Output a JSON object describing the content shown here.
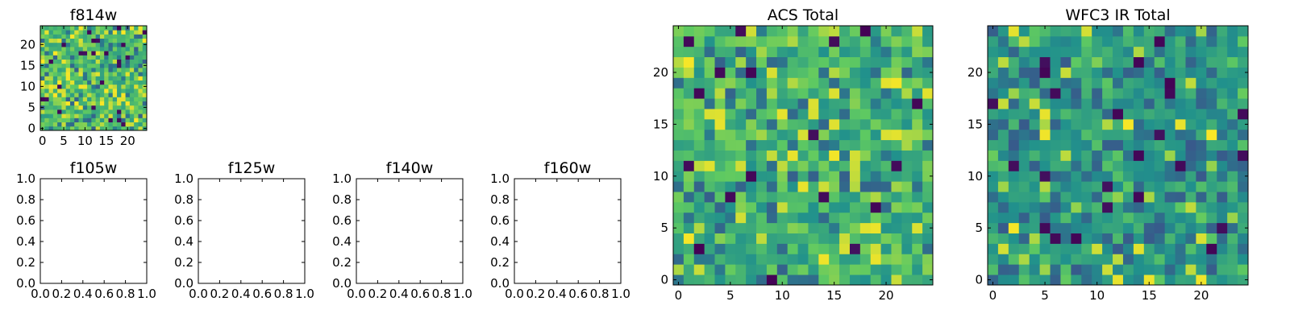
{
  "chart_data": [
    {
      "id": "f814w",
      "type": "heatmap",
      "title": "f814w",
      "grid_size": 25,
      "xlim": [
        -0.5,
        24.5
      ],
      "ylim": [
        -0.5,
        24.5
      ],
      "xticks": [
        0,
        5,
        10,
        15,
        20
      ],
      "yticks": [
        0,
        5,
        10,
        15,
        20
      ],
      "colormap": "viridis",
      "has_image": true,
      "seed": 17
    },
    {
      "id": "f105w",
      "type": "heatmap",
      "title": "f105w",
      "xlim": [
        0,
        1
      ],
      "ylim": [
        0,
        1
      ],
      "xticks": [
        "0.0",
        "0.2",
        "0.4",
        "0.6",
        "0.8",
        "1.0"
      ],
      "yticks": [
        "0.0",
        "0.2",
        "0.4",
        "0.6",
        "0.8",
        "1.0"
      ],
      "has_image": false
    },
    {
      "id": "f125w",
      "type": "heatmap",
      "title": "f125w",
      "xlim": [
        0,
        1
      ],
      "ylim": [
        0,
        1
      ],
      "xticks": [
        "0.0",
        "0.2",
        "0.4",
        "0.6",
        "0.8",
        "1.0"
      ],
      "yticks": [
        "0.0",
        "0.2",
        "0.4",
        "0.6",
        "0.8",
        "1.0"
      ],
      "has_image": false
    },
    {
      "id": "f140w",
      "type": "heatmap",
      "title": "f140w",
      "xlim": [
        0,
        1
      ],
      "ylim": [
        0,
        1
      ],
      "xticks": [
        "0.0",
        "0.2",
        "0.4",
        "0.6",
        "0.8",
        "1.0"
      ],
      "yticks": [
        "0.0",
        "0.2",
        "0.4",
        "0.6",
        "0.8",
        "1.0"
      ],
      "has_image": false
    },
    {
      "id": "f160w",
      "type": "heatmap",
      "title": "f160w",
      "xlim": [
        0,
        1
      ],
      "ylim": [
        0,
        1
      ],
      "xticks": [
        "0.0",
        "0.2",
        "0.4",
        "0.6",
        "0.8",
        "1.0"
      ],
      "yticks": [
        "0.0",
        "0.2",
        "0.4",
        "0.6",
        "0.8",
        "1.0"
      ],
      "has_image": false
    },
    {
      "id": "acs-total",
      "type": "heatmap",
      "title": "ACS Total",
      "grid_size": 25,
      "xlim": [
        -0.5,
        24.5
      ],
      "ylim": [
        -0.5,
        24.5
      ],
      "xticks": [
        0,
        5,
        10,
        15,
        20
      ],
      "yticks": [
        0,
        5,
        10,
        15,
        20
      ],
      "colormap": "viridis",
      "has_image": true,
      "seed": 101
    },
    {
      "id": "wfc3-ir-total",
      "type": "heatmap",
      "title": "WFC3 IR Total",
      "grid_size": 25,
      "xlim": [
        -0.5,
        24.5
      ],
      "ylim": [
        -0.5,
        24.5
      ],
      "xticks": [
        0,
        5,
        10,
        15,
        20
      ],
      "yticks": [
        0,
        5,
        10,
        15,
        20
      ],
      "colormap": "viridis",
      "has_image": true,
      "seed": 211
    }
  ],
  "colors": {
    "viridis": [
      "#440154",
      "#3b528b",
      "#21918c",
      "#5ec962",
      "#fde725"
    ],
    "frame": "#000000",
    "background": "#ffffff"
  }
}
